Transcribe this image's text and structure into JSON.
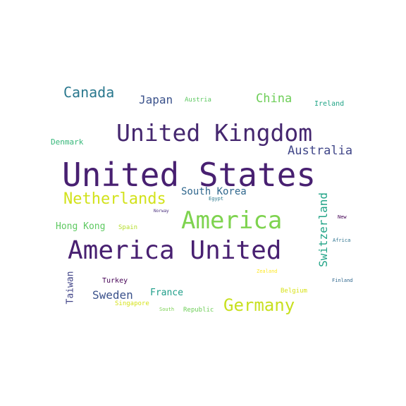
{
  "words": [
    {
      "text": "United States",
      "color": "#482071"
    },
    {
      "text": "United Kingdom",
      "color": "#45276f"
    },
    {
      "text": "America United",
      "color": "#482071"
    },
    {
      "text": "America",
      "color": "#7ed34f"
    },
    {
      "text": "Germany",
      "color": "#c8e020"
    },
    {
      "text": "Netherlands",
      "color": "#d2e21b"
    },
    {
      "text": "Canada",
      "color": "#2a788e"
    },
    {
      "text": "Australia",
      "color": "#404688"
    },
    {
      "text": "China",
      "color": "#6ece58"
    },
    {
      "text": "Japan",
      "color": "#3b528b"
    },
    {
      "text": "Switzerland",
      "color": "#20a386"
    },
    {
      "text": "South Korea",
      "color": "#31688e"
    },
    {
      "text": "Sweden",
      "color": "#3b528b"
    },
    {
      "text": "Hong Kong",
      "color": "#5ec962"
    },
    {
      "text": "France",
      "color": "#1f9e89"
    },
    {
      "text": "Taiwan",
      "color": "#414487"
    },
    {
      "text": "Denmark",
      "color": "#35b779"
    },
    {
      "text": "Ireland",
      "color": "#20a486"
    },
    {
      "text": "Austria",
      "color": "#5ec962"
    },
    {
      "text": "Spain",
      "color": "#b5de2b"
    },
    {
      "text": "Turkey",
      "color": "#440154"
    },
    {
      "text": "Republic",
      "color": "#6ece58"
    },
    {
      "text": "Belgium",
      "color": "#d8e219"
    },
    {
      "text": "Singapore",
      "color": "#d5e21a"
    },
    {
      "text": "South",
      "color": "#7ad151"
    },
    {
      "text": "Egypt",
      "color": "#2a788e"
    },
    {
      "text": "Norway",
      "color": "#472d7b"
    },
    {
      "text": "New",
      "color": "#440154"
    },
    {
      "text": "Africa",
      "color": "#2c728e"
    },
    {
      "text": "Zealand",
      "color": "#fde725"
    },
    {
      "text": "Finland",
      "color": "#31688e"
    }
  ]
}
